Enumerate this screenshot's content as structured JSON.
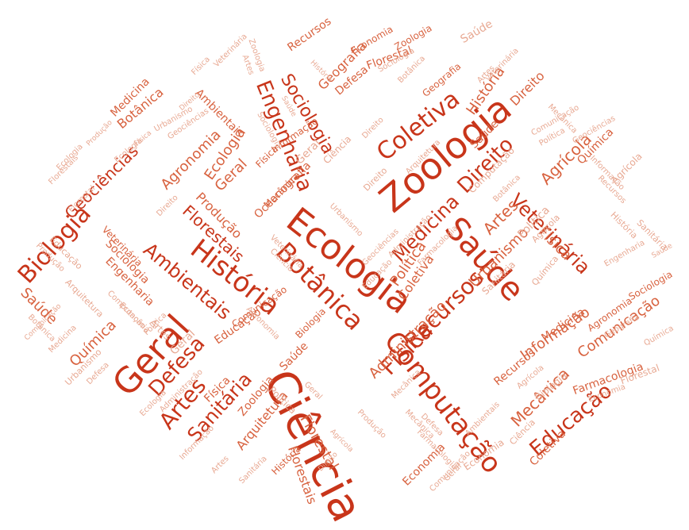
{
  "colors": {
    "primary": "#c8351a",
    "secondary": "#d8623f",
    "faint": "#e8a993",
    "background": "#ffffff"
  },
  "words": [
    "Ciência",
    "Zoologia",
    "Ecologia",
    "Saúde",
    "Geral",
    "História",
    "Computação",
    "Botânica",
    "Biologia",
    "Coletiva",
    "Engenharia",
    "Sociologia",
    "Geografia",
    "Recursos",
    "Física",
    "Medicina",
    "Política",
    "Artes",
    "Defesa",
    "Sanitária",
    "Ambientais",
    "Florestais",
    "Urbanismo",
    "Direito",
    "Veterinária",
    "Agrícola",
    "Produção",
    "Informação",
    "Comunicação",
    "Educação",
    "Mecânica",
    "Química",
    "Geociências",
    "Agronomia",
    "Oceanografia",
    "Administração",
    "Farmacologia",
    "Economia",
    "Florestal",
    "Arquitetura"
  ]
}
